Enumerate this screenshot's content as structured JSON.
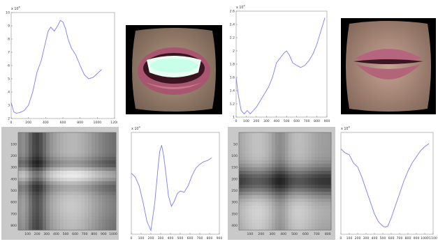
{
  "chart_data": [
    {
      "type": "line",
      "y_multiplier": "x 10",
      "y_multiplier_exp": "4",
      "xlim": [
        0,
        1200
      ],
      "ylim": [
        2,
        10
      ],
      "xticks": [
        "0",
        "200",
        "400",
        "600",
        "800",
        "1000",
        "1200"
      ],
      "yticks": [
        "2",
        "3",
        "4",
        "5",
        "6",
        "7",
        "8",
        "9",
        "10"
      ],
      "x": [
        0,
        30,
        60,
        100,
        150,
        200,
        250,
        300,
        350,
        400,
        430,
        460,
        500,
        540,
        570,
        600,
        630,
        660,
        700,
        750,
        800,
        850,
        900,
        950,
        1000,
        1050
      ],
      "y": [
        3.2,
        2.5,
        2.4,
        2.45,
        2.6,
        3.0,
        4.0,
        5.5,
        6.4,
        7.8,
        8.6,
        8.9,
        8.6,
        9.0,
        9.4,
        9.3,
        8.8,
        8.0,
        7.3,
        6.8,
        6.0,
        5.3,
        5.0,
        5.1,
        5.4,
        5.7
      ]
    },
    {
      "type": "line",
      "y_multiplier": "x 10",
      "y_multiplier_exp": "4",
      "xlim": [
        0,
        900
      ],
      "ylim": [
        1,
        2.6
      ],
      "xticks": [
        "0",
        "100",
        "200",
        "300",
        "400",
        "500",
        "600",
        "700",
        "800",
        "900"
      ],
      "yticks": [
        "1",
        "1.2",
        "1.4",
        "1.6",
        "1.8",
        "2",
        "2.2",
        "2.4",
        "2.6"
      ],
      "x": [
        0,
        20,
        50,
        80,
        110,
        140,
        170,
        200,
        240,
        280,
        320,
        360,
        400,
        440,
        470,
        500,
        530,
        560,
        600,
        640,
        680,
        720,
        760,
        800,
        840,
        880
      ],
      "y": [
        1.6,
        1.35,
        1.1,
        1.05,
        1.1,
        1.05,
        1.1,
        1.15,
        1.25,
        1.35,
        1.45,
        1.6,
        1.82,
        1.9,
        1.96,
        2.0,
        1.93,
        1.82,
        1.78,
        1.75,
        1.78,
        1.85,
        1.95,
        2.1,
        2.3,
        2.5
      ]
    },
    {
      "type": "line",
      "y_multiplier": "x 10",
      "y_multiplier_exp": "4",
      "xlim": [
        0,
        900
      ],
      "ylim": [
        0,
        8
      ],
      "xticks": [
        "0",
        "100",
        "200",
        "300",
        "400",
        "500",
        "600",
        "700",
        "800",
        "900"
      ],
      "yticks": [],
      "x": [
        0,
        40,
        80,
        120,
        160,
        200,
        240,
        270,
        290,
        310,
        330,
        350,
        380,
        410,
        440,
        470,
        500,
        540,
        580,
        620,
        660,
        700,
        740,
        780,
        820
      ],
      "y": [
        4.8,
        4.5,
        3.8,
        2.5,
        1.0,
        0.3,
        2.5,
        5.0,
        6.5,
        7.0,
        6.2,
        5.0,
        3.0,
        2.2,
        2.6,
        3.2,
        3.4,
        3.3,
        3.8,
        4.6,
        5.2,
        5.5,
        5.7,
        5.8,
        6.0
      ]
    },
    {
      "type": "line",
      "y_multiplier": "x 10",
      "y_multiplier_exp": "4",
      "xlim": [
        0,
        1100
      ],
      "ylim": [
        0,
        5
      ],
      "xticks": [
        "0",
        "100",
        "200",
        "300",
        "400",
        "500",
        "600",
        "700",
        "800",
        "900",
        "1000",
        "1100"
      ],
      "yticks": [],
      "x": [
        0,
        50,
        100,
        150,
        200,
        250,
        300,
        350,
        400,
        450,
        500,
        530,
        560,
        600,
        650,
        700,
        750,
        800,
        850,
        900,
        950,
        1000,
        1050
      ],
      "y": [
        4.2,
        4.0,
        3.9,
        3.5,
        3.3,
        2.8,
        2.2,
        1.6,
        1.0,
        0.6,
        0.4,
        0.35,
        0.4,
        0.8,
        1.4,
        2.0,
        2.6,
        3.1,
        3.5,
        3.8,
        4.1,
        4.3,
        4.45
      ]
    }
  ],
  "heatmaps": [
    {
      "xticks": [
        "100",
        "200",
        "300",
        "400",
        "500",
        "600",
        "700",
        "800",
        "900",
        "1000"
      ],
      "yticks": [
        "100",
        "200",
        "300",
        "400",
        "500",
        "600",
        "700",
        "800"
      ]
    },
    {
      "xticks": [
        "100",
        "200",
        "300",
        "400",
        "500",
        "600",
        "700",
        "800"
      ],
      "yticks": [
        "50",
        "100",
        "150",
        "200",
        "250",
        "300",
        "350",
        "400"
      ]
    }
  ]
}
